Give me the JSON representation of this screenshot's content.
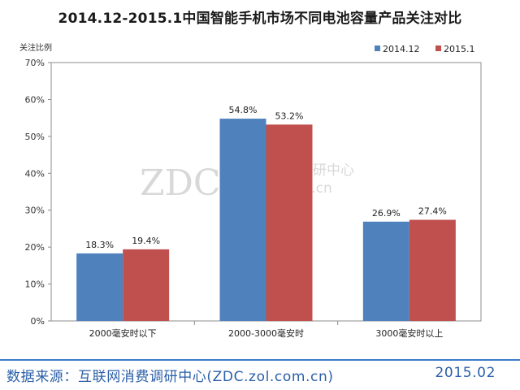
{
  "chart_data": {
    "type": "bar",
    "title": "2014.12-2015.1中国智能手机市场不同电池容量产品关注对比",
    "ylabel": "关注比例",
    "xlabel": "",
    "categories": [
      "2000毫安时以下",
      "2000-3000毫安时",
      "3000毫安时以上"
    ],
    "series": [
      {
        "name": "2014.12",
        "values": [
          18.3,
          54.8,
          26.9
        ],
        "labels": [
          "18.3%",
          "54.8%",
          "26.9%"
        ],
        "color": "#4f81bd"
      },
      {
        "name": "2015.1",
        "values": [
          19.4,
          53.2,
          27.4
        ],
        "labels": [
          "19.4%",
          "53.2%",
          "27.4%"
        ],
        "color": "#c0504d"
      }
    ],
    "ylim": [
      0,
      70
    ],
    "yticks": [
      "0%",
      "10%",
      "20%",
      "30%",
      "40%",
      "50%",
      "60%",
      "70%"
    ],
    "grid": false,
    "legend_position": "top-right"
  },
  "watermark": {
    "logo": "ZDC",
    "cn": "互联网消费调研中心",
    "url": "zdc.zol.com.cn"
  },
  "footer": {
    "source": "数据来源：互联网消费调研中心(ZDC.zol.com.cn)",
    "date": "2015.02"
  }
}
